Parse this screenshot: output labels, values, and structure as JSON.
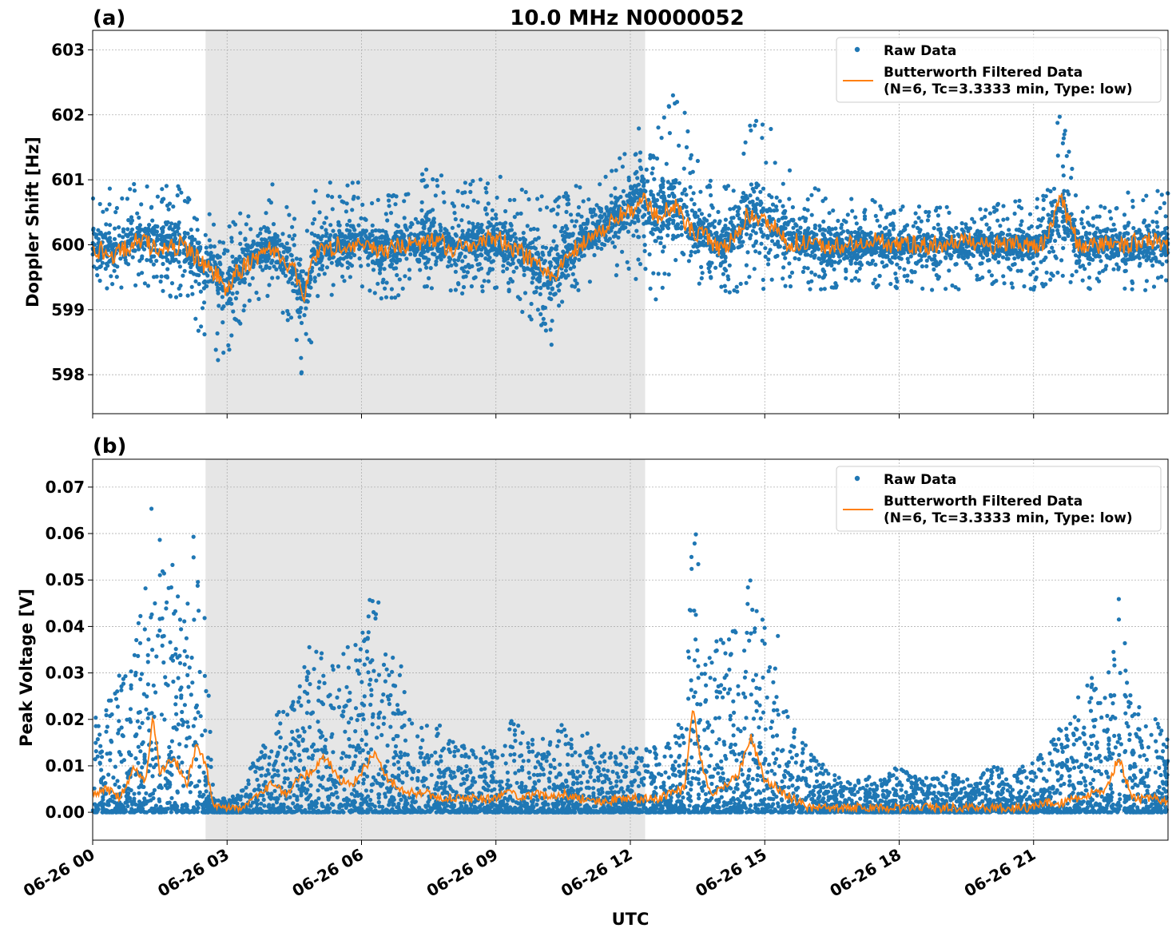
{
  "figure": {
    "title": "10.0 MHz N0000052",
    "xlabel": "UTC"
  },
  "colors": {
    "raw": "#1f77b4",
    "filtered": "#ff7f0e",
    "shade": "#e6e6e6",
    "grid": "#b0b0b0"
  },
  "chart_data": [
    {
      "type": "scatter",
      "panel_label": "(a)",
      "ylabel": "Doppler Shift [Hz]",
      "xlim": [
        "06-26 00:00",
        "06-26 24:00"
      ],
      "x_ticks": [
        "06-26 00",
        "06-26 03",
        "06-26 06",
        "06-26 09",
        "06-26 12",
        "06-26 15",
        "06-26 18",
        "06-26 21"
      ],
      "ylim": [
        597.4,
        603.3
      ],
      "y_ticks": [
        "598",
        "599",
        "600",
        "601",
        "602",
        "603"
      ],
      "grid": true,
      "legend_position": "top-right",
      "shaded_interval_hours": [
        2.52,
        12.33
      ],
      "series": [
        {
          "name": "Raw Data",
          "style": "points",
          "x_hours": [
            0,
            0.5,
            1,
            1.5,
            2,
            2.5,
            2.8,
            3,
            3.2,
            3.5,
            4,
            4.5,
            4.7,
            5,
            5.5,
            6,
            6.5,
            7,
            7.5,
            8,
            8.5,
            9,
            9.5,
            10,
            10.3,
            10.5,
            11,
            11.5,
            12,
            12.3,
            12.6,
            13,
            13.3,
            13.6,
            14,
            14.3,
            14.6,
            14.9,
            15.2,
            15.5,
            16,
            16.5,
            17,
            17.5,
            18,
            18.5,
            19,
            19.5,
            20,
            20.5,
            21,
            21.3,
            21.6,
            22,
            22.5,
            23,
            23.5,
            24
          ],
          "center": [
            600.0,
            599.9,
            600.1,
            600.0,
            600.0,
            599.7,
            599.6,
            599.4,
            599.6,
            599.8,
            600.0,
            599.6,
            599.2,
            599.9,
            600.0,
            600.1,
            599.9,
            600.0,
            600.1,
            600.0,
            600.0,
            600.1,
            599.9,
            599.7,
            599.5,
            599.8,
            600.1,
            600.3,
            600.6,
            600.7,
            600.5,
            600.6,
            600.3,
            600.2,
            600.0,
            600.1,
            600.5,
            600.4,
            600.3,
            600.1,
            600.0,
            600.0,
            600.0,
            600.0,
            600.0,
            600.0,
            600.0,
            600.0,
            600.0,
            600.0,
            600.0,
            600.1,
            600.6,
            600.0,
            600.0,
            600.0,
            600.0,
            600.0
          ],
          "low": [
            599.3,
            599.2,
            599.3,
            599.2,
            599.1,
            598.5,
            598.0,
            597.9,
            598.6,
            599.0,
            599.2,
            598.6,
            597.7,
            599.0,
            599.3,
            599.3,
            599.1,
            599.2,
            599.3,
            599.2,
            599.2,
            599.3,
            599.0,
            598.5,
            598.3,
            599.0,
            599.4,
            599.5,
            599.5,
            599.4,
            599.1,
            599.5,
            599.3,
            599.4,
            599.3,
            599.2,
            599.3,
            599.3,
            599.3,
            599.3,
            599.3,
            599.3,
            599.3,
            599.3,
            599.3,
            599.3,
            599.3,
            599.3,
            599.3,
            599.3,
            599.3,
            599.3,
            599.5,
            599.3,
            599.3,
            599.3,
            599.3,
            599.3
          ],
          "high": [
            600.8,
            600.9,
            601.0,
            600.9,
            601.0,
            600.6,
            600.5,
            600.4,
            600.5,
            600.6,
            601.0,
            600.6,
            600.3,
            600.9,
            601.0,
            601.0,
            600.8,
            600.9,
            601.2,
            601.0,
            601.0,
            601.1,
            600.9,
            600.8,
            600.7,
            600.8,
            601.0,
            601.2,
            601.7,
            602.0,
            601.8,
            602.4,
            602.0,
            601.3,
            600.9,
            601.0,
            601.9,
            602.2,
            601.8,
            601.3,
            600.9,
            600.8,
            600.8,
            600.7,
            600.6,
            600.6,
            600.6,
            600.6,
            600.7,
            600.7,
            600.7,
            600.8,
            602.2,
            600.8,
            600.8,
            600.8,
            600.9,
            600.8
          ]
        },
        {
          "name": "Butterworth Filtered Data\n(N=6, Tc=3.3333 min, Type: low)",
          "style": "line",
          "x_hours": [
            0,
            0.5,
            1,
            1.5,
            2,
            2.5,
            2.8,
            3,
            3.2,
            3.5,
            4,
            4.5,
            4.7,
            5,
            5.5,
            6,
            6.5,
            7,
            7.5,
            8,
            8.5,
            9,
            9.5,
            10,
            10.3,
            10.5,
            11,
            11.5,
            12,
            12.3,
            12.6,
            13,
            13.3,
            13.6,
            14,
            14.3,
            14.6,
            14.9,
            15.2,
            15.5,
            16,
            16.5,
            17,
            17.5,
            18,
            18.5,
            19,
            19.5,
            20,
            20.5,
            21,
            21.3,
            21.6,
            22,
            22.5,
            23,
            23.5,
            24
          ],
          "values": [
            599.95,
            599.85,
            600.05,
            599.95,
            600.0,
            599.7,
            599.5,
            599.3,
            599.55,
            599.75,
            599.95,
            599.6,
            599.2,
            599.9,
            600.0,
            600.05,
            599.9,
            600.0,
            600.1,
            599.95,
            600.0,
            600.1,
            599.9,
            599.7,
            599.45,
            599.8,
            600.05,
            600.3,
            600.55,
            600.65,
            600.45,
            600.6,
            600.25,
            600.15,
            599.95,
            600.05,
            600.45,
            600.4,
            600.3,
            600.05,
            600.0,
            600.0,
            600.0,
            600.05,
            600.0,
            600.0,
            600.0,
            600.05,
            600.0,
            600.0,
            600.0,
            600.05,
            600.7,
            600.0,
            600.0,
            600.0,
            600.05,
            600.0
          ]
        }
      ]
    },
    {
      "type": "scatter",
      "panel_label": "(b)",
      "ylabel": "Peak Voltage [V]",
      "xlim": [
        "06-26 00:00",
        "06-26 24:00"
      ],
      "x_ticks": [
        "06-26 00",
        "06-26 03",
        "06-26 06",
        "06-26 09",
        "06-26 12",
        "06-26 15",
        "06-26 18",
        "06-26 21"
      ],
      "ylim": [
        -0.006,
        0.076
      ],
      "y_ticks": [
        "0.00",
        "0.01",
        "0.02",
        "0.03",
        "0.04",
        "0.05",
        "0.06",
        "0.07"
      ],
      "grid": true,
      "legend_position": "top-right",
      "shaded_interval_hours": [
        2.52,
        12.33
      ],
      "series": [
        {
          "name": "Raw Data",
          "style": "points",
          "x_hours": [
            0,
            0.3,
            0.6,
            0.9,
            1.2,
            1.35,
            1.5,
            1.8,
            2.1,
            2.3,
            2.5,
            2.7,
            3,
            3.3,
            3.6,
            4,
            4.3,
            4.6,
            4.9,
            5.2,
            5.5,
            5.8,
            6.1,
            6.3,
            6.6,
            6.9,
            7.2,
            7.5,
            7.8,
            8.1,
            8.4,
            8.7,
            9,
            9.3,
            9.6,
            9.9,
            10.2,
            10.5,
            10.8,
            11.1,
            11.4,
            11.7,
            12,
            12.3,
            12.6,
            12.9,
            13.2,
            13.4,
            13.55,
            13.8,
            14.1,
            14.4,
            14.7,
            15,
            15.3,
            15.6,
            16,
            16.5,
            17,
            17.5,
            18,
            18.5,
            19,
            19.5,
            20,
            20.5,
            21,
            21.3,
            21.6,
            22,
            22.3,
            22.6,
            22.9,
            23.2,
            23.5,
            23.8,
            24
          ],
          "low": [
            0,
            0,
            0,
            0,
            0,
            0,
            0,
            0,
            0,
            0,
            0,
            0,
            0,
            0,
            0,
            0,
            0,
            0,
            0,
            0,
            0,
            0,
            0,
            0,
            0,
            0,
            0,
            0,
            0,
            0,
            0,
            0,
            0,
            0,
            0,
            0,
            0,
            0,
            0,
            0,
            0,
            0,
            0,
            0,
            0,
            0,
            0,
            0,
            0,
            0,
            0,
            0,
            0,
            0,
            0,
            0,
            0,
            0,
            0,
            0,
            0,
            0,
            0,
            0,
            0,
            0,
            0,
            0,
            0,
            0,
            0,
            0,
            0,
            0,
            0,
            0,
            0
          ],
          "high": [
            0.02,
            0.024,
            0.03,
            0.035,
            0.05,
            0.072,
            0.06,
            0.055,
            0.045,
            0.067,
            0.043,
            0.003,
            0.003,
            0.004,
            0.012,
            0.02,
            0.023,
            0.028,
            0.038,
            0.034,
            0.033,
            0.038,
            0.043,
            0.05,
            0.038,
            0.035,
            0.025,
            0.022,
            0.018,
            0.015,
            0.014,
            0.015,
            0.013,
            0.02,
            0.018,
            0.016,
            0.017,
            0.019,
            0.016,
            0.018,
            0.013,
            0.014,
            0.014,
            0.016,
            0.015,
            0.017,
            0.022,
            0.065,
            0.06,
            0.036,
            0.038,
            0.04,
            0.052,
            0.045,
            0.038,
            0.022,
            0.013,
            0.009,
            0.007,
            0.008,
            0.01,
            0.007,
            0.009,
            0.007,
            0.011,
            0.009,
            0.011,
            0.014,
            0.022,
            0.025,
            0.03,
            0.028,
            0.053,
            0.025,
            0.021,
            0.02,
            0.016
          ]
        },
        {
          "name": "Butterworth Filtered Data\n(N=6, Tc=3.3333 min, Type: low)",
          "style": "line",
          "x_hours": [
            0,
            0.3,
            0.6,
            0.9,
            1.2,
            1.35,
            1.5,
            1.8,
            2.1,
            2.3,
            2.5,
            2.7,
            3,
            3.3,
            3.6,
            4,
            4.3,
            4.6,
            4.9,
            5.2,
            5.5,
            5.8,
            6.1,
            6.3,
            6.6,
            6.9,
            7.2,
            7.5,
            7.8,
            8.1,
            8.4,
            8.7,
            9,
            9.3,
            9.6,
            9.9,
            10.2,
            10.5,
            10.8,
            11.1,
            11.4,
            11.7,
            12,
            12.3,
            12.6,
            12.9,
            13.2,
            13.4,
            13.55,
            13.8,
            14.1,
            14.4,
            14.7,
            15,
            15.3,
            15.6,
            16,
            16.5,
            17,
            17.5,
            18,
            18.5,
            19,
            19.5,
            20,
            20.5,
            21,
            21.3,
            21.6,
            22,
            22.3,
            22.6,
            22.9,
            23.2,
            23.5,
            23.8,
            24
          ],
          "values": [
            0.004,
            0.005,
            0.003,
            0.009,
            0.007,
            0.021,
            0.008,
            0.012,
            0.006,
            0.014,
            0.011,
            0.0015,
            0.001,
            0.0012,
            0.003,
            0.006,
            0.004,
            0.007,
            0.009,
            0.012,
            0.007,
            0.006,
            0.01,
            0.013,
            0.007,
            0.005,
            0.004,
            0.004,
            0.003,
            0.003,
            0.003,
            0.003,
            0.003,
            0.004,
            0.003,
            0.004,
            0.003,
            0.004,
            0.003,
            0.003,
            0.002,
            0.003,
            0.003,
            0.003,
            0.003,
            0.004,
            0.005,
            0.023,
            0.012,
            0.004,
            0.006,
            0.008,
            0.016,
            0.007,
            0.005,
            0.003,
            0.001,
            0.001,
            0.001,
            0.001,
            0.001,
            0.001,
            0.001,
            0.001,
            0.001,
            0.001,
            0.001,
            0.002,
            0.002,
            0.003,
            0.004,
            0.004,
            0.012,
            0.003,
            0.003,
            0.003,
            0.002
          ]
        }
      ]
    }
  ]
}
